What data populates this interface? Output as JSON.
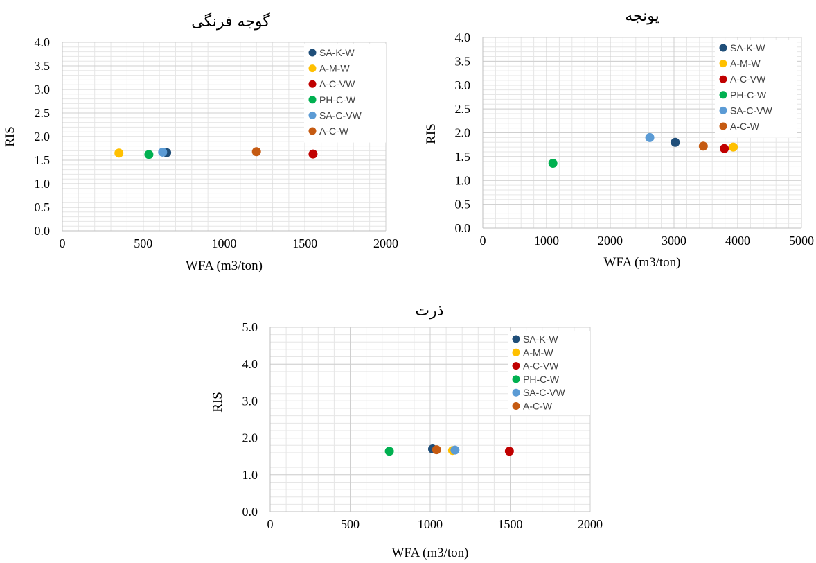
{
  "chart_data": [
    {
      "type": "scatter",
      "title": "گوجه فرنگی",
      "xlabel": "WFA (m3/ton)",
      "ylabel": "RIS",
      "xlim": [
        0,
        2000
      ],
      "ylim": [
        0,
        4.0
      ],
      "x_ticks": [
        "0",
        "500",
        "1000",
        "1500",
        "2000"
      ],
      "y_ticks": [
        "0.0",
        "0.5",
        "1.0",
        "1.5",
        "2.0",
        "2.5",
        "3.0",
        "3.5",
        "4.0"
      ],
      "grid": true,
      "legend_position": "top-right",
      "series": [
        {
          "name": "SA-K-W",
          "color": "#1f4e79",
          "x": [
            645
          ],
          "y": [
            1.66
          ]
        },
        {
          "name": "A-M-W",
          "color": "#ffc000",
          "x": [
            350
          ],
          "y": [
            1.65
          ]
        },
        {
          "name": "A-C-VW",
          "color": "#c00000",
          "x": [
            1550
          ],
          "y": [
            1.63
          ]
        },
        {
          "name": "PH-C-W",
          "color": "#00b050",
          "x": [
            535
          ],
          "y": [
            1.62
          ]
        },
        {
          "name": "SA-C-VW",
          "color": "#5b9bd5",
          "x": [
            620
          ],
          "y": [
            1.67
          ]
        },
        {
          "name": "A-C-W",
          "color": "#c55a11",
          "x": [
            1200
          ],
          "y": [
            1.68
          ]
        }
      ]
    },
    {
      "type": "scatter",
      "title": "یونجه",
      "xlabel": "WFA (m3/ton)",
      "ylabel": "RIS",
      "xlim": [
        0,
        5000
      ],
      "ylim": [
        0,
        4.0
      ],
      "x_ticks": [
        "0",
        "1000",
        "2000",
        "3000",
        "4000",
        "5000"
      ],
      "y_ticks": [
        "0.0",
        "0.5",
        "1.0",
        "1.5",
        "2.0",
        "2.5",
        "3.0",
        "3.5",
        "4.0"
      ],
      "grid": true,
      "legend_position": "top-right",
      "series": [
        {
          "name": "SA-K-W",
          "color": "#1f4e79",
          "x": [
            3020
          ],
          "y": [
            1.8
          ]
        },
        {
          "name": "A-M-W",
          "color": "#ffc000",
          "x": [
            3930
          ],
          "y": [
            1.7
          ]
        },
        {
          "name": "A-C-VW",
          "color": "#c00000",
          "x": [
            3790
          ],
          "y": [
            1.67
          ]
        },
        {
          "name": "PH-C-W",
          "color": "#00b050",
          "x": [
            1100
          ],
          "y": [
            1.36
          ]
        },
        {
          "name": "SA-C-VW",
          "color": "#5b9bd5",
          "x": [
            2620
          ],
          "y": [
            1.9
          ]
        },
        {
          "name": "A-C-W",
          "color": "#c55a11",
          "x": [
            3460
          ],
          "y": [
            1.72
          ]
        }
      ]
    },
    {
      "type": "scatter",
      "title": "ذرت",
      "xlabel": "WFA (m3/ton)",
      "ylabel": "RIS",
      "xlim": [
        0,
        2000
      ],
      "ylim": [
        0,
        5.0
      ],
      "x_ticks": [
        "0",
        "500",
        "1000",
        "1500",
        "2000"
      ],
      "y_ticks": [
        "0.0",
        "1.0",
        "2.0",
        "3.0",
        "4.0",
        "5.0"
      ],
      "grid": true,
      "legend_position": "top-right",
      "series": [
        {
          "name": "SA-K-W",
          "color": "#1f4e79",
          "x": [
            1015
          ],
          "y": [
            1.7
          ]
        },
        {
          "name": "A-M-W",
          "color": "#ffc000",
          "x": [
            1140
          ],
          "y": [
            1.66
          ]
        },
        {
          "name": "A-C-VW",
          "color": "#c00000",
          "x": [
            1495
          ],
          "y": [
            1.64
          ]
        },
        {
          "name": "PH-C-W",
          "color": "#00b050",
          "x": [
            745
          ],
          "y": [
            1.64
          ]
        },
        {
          "name": "SA-C-VW",
          "color": "#5b9bd5",
          "x": [
            1155
          ],
          "y": [
            1.67
          ]
        },
        {
          "name": "A-C-W",
          "color": "#c55a11",
          "x": [
            1040
          ],
          "y": [
            1.68
          ]
        }
      ]
    }
  ]
}
